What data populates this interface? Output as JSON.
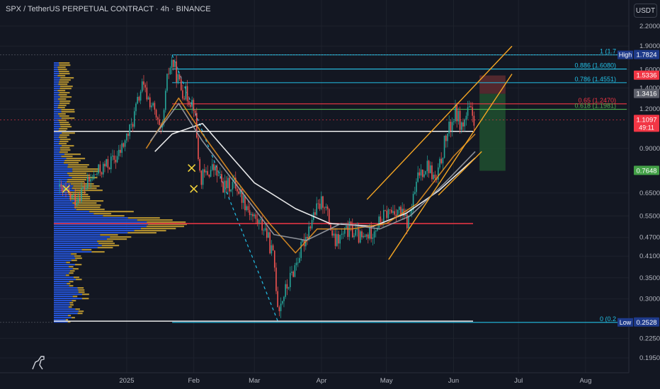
{
  "header": {
    "title": "SPX / TetherUS PERPETUAL CONTRACT · 4h · BINANCE",
    "currency_button": "USDT"
  },
  "colors": {
    "background": "#131722",
    "grid": "#1e222d",
    "candle_up": "#26a69a",
    "candle_down": "#ef5350",
    "volume_profile_up": "#2962ff",
    "volume_profile_down": "#c8a132",
    "channel": "#f5a623",
    "fib": "#22c0e6",
    "fib_red": "#f23645",
    "fib_green": "#4caf50",
    "ma_white": "#ffffff",
    "ma_orange": "#e08e22",
    "ma_grey": "#9b9ea6",
    "long_target": "#1f4d2f",
    "short_stop": "#5a2a30"
  },
  "chart_data": {
    "type": "candlestick",
    "symbol": "SPX / TetherUS PERPETUAL CONTRACT",
    "interval": "4h",
    "exchange": "BINANCE",
    "yscale": "log",
    "ylim": [
      0.175,
      2.45
    ],
    "xlim": [
      "2024-11-28",
      "2025-08-20"
    ],
    "y_ticks": [
      "2.2000",
      "1.9000",
      "1.6000",
      "1.4000",
      "1.2000",
      "0.9000",
      "0.6500",
      "0.5500",
      "0.4700",
      "0.4100",
      "0.3500",
      "0.3000",
      "0.2250",
      "0.1950"
    ],
    "x_ticks": [
      {
        "label": "2025",
        "date": "2025-01-01"
      },
      {
        "label": "Feb",
        "date": "2025-02-01"
      },
      {
        "label": "Mar",
        "date": "2025-03-01"
      },
      {
        "label": "Apr",
        "date": "2025-04-01"
      },
      {
        "label": "May",
        "date": "2025-05-01"
      },
      {
        "label": "Jun",
        "date": "2025-06-01"
      },
      {
        "label": "Jul",
        "date": "2025-07-01"
      },
      {
        "label": "Aug",
        "date": "2025-08-01"
      }
    ],
    "price_path": [
      [
        "2024-11-28",
        0.68
      ],
      [
        "2024-12-08",
        0.62
      ],
      [
        "2024-12-18",
        0.75
      ],
      [
        "2024-12-28",
        0.85
      ],
      [
        "2025-01-03",
        1.05
      ],
      [
        "2025-01-08",
        1.42
      ],
      [
        "2025-01-13",
        1.22
      ],
      [
        "2025-01-17",
        0.98
      ],
      [
        "2025-01-20",
        1.55
      ],
      [
        "2025-01-22",
        1.71
      ],
      [
        "2025-01-26",
        1.4
      ],
      [
        "2025-02-01",
        1.25
      ],
      [
        "2025-02-04",
        0.72
      ],
      [
        "2025-02-10",
        0.78
      ],
      [
        "2025-02-15",
        0.68
      ],
      [
        "2025-02-20",
        0.7
      ],
      [
        "2025-02-28",
        0.55
      ],
      [
        "2025-03-06",
        0.5
      ],
      [
        "2025-03-10",
        0.4
      ],
      [
        "2025-03-12",
        0.28
      ],
      [
        "2025-03-17",
        0.34
      ],
      [
        "2025-03-22",
        0.42
      ],
      [
        "2025-03-28",
        0.55
      ],
      [
        "2025-04-02",
        0.62
      ],
      [
        "2025-04-07",
        0.45
      ],
      [
        "2025-04-14",
        0.5
      ],
      [
        "2025-04-20",
        0.46
      ],
      [
        "2025-04-25",
        0.5
      ],
      [
        "2025-05-01",
        0.56
      ],
      [
        "2025-05-06",
        0.58
      ],
      [
        "2025-05-11",
        0.52
      ],
      [
        "2025-05-16",
        0.75
      ],
      [
        "2025-05-20",
        0.8
      ],
      [
        "2025-05-24",
        0.7
      ],
      [
        "2025-05-28",
        0.95
      ],
      [
        "2025-06-02",
        1.18
      ],
      [
        "2025-06-05",
        1.05
      ],
      [
        "2025-06-08",
        1.19
      ],
      [
        "2025-06-11",
        1.11
      ]
    ],
    "moving_averages": [
      {
        "color": "#ffffff",
        "points": [
          [
            "2025-01-14",
            0.88
          ],
          [
            "2025-01-22",
            1.0
          ],
          [
            "2025-02-05",
            1.08
          ],
          [
            "2025-02-15",
            0.9
          ],
          [
            "2025-03-01",
            0.7
          ],
          [
            "2025-03-20",
            0.58
          ],
          [
            "2025-04-05",
            0.52
          ],
          [
            "2025-04-25",
            0.51
          ],
          [
            "2025-05-10",
            0.56
          ],
          [
            "2025-05-25",
            0.66
          ],
          [
            "2025-06-11",
            0.84
          ]
        ]
      },
      {
        "color": "#e08e22",
        "points": [
          [
            "2025-01-10",
            0.9
          ],
          [
            "2025-01-25",
            1.3
          ],
          [
            "2025-02-05",
            1.0
          ],
          [
            "2025-02-20",
            0.72
          ],
          [
            "2025-03-08",
            0.52
          ],
          [
            "2025-03-20",
            0.42
          ],
          [
            "2025-03-30",
            0.5
          ],
          [
            "2025-04-15",
            0.5
          ],
          [
            "2025-05-01",
            0.52
          ],
          [
            "2025-05-15",
            0.6
          ],
          [
            "2025-06-01",
            0.85
          ],
          [
            "2025-06-11",
            1.0
          ]
        ]
      },
      {
        "color": "#9b9ea6",
        "points": [
          [
            "2025-01-12",
            0.95
          ],
          [
            "2025-01-25",
            1.25
          ],
          [
            "2025-02-05",
            0.95
          ],
          [
            "2025-02-20",
            0.7
          ],
          [
            "2025-03-10",
            0.48
          ],
          [
            "2025-03-25",
            0.46
          ],
          [
            "2025-04-10",
            0.52
          ],
          [
            "2025-04-28",
            0.5
          ],
          [
            "2025-05-12",
            0.55
          ],
          [
            "2025-05-28",
            0.7
          ],
          [
            "2025-06-11",
            0.88
          ]
        ]
      }
    ],
    "fib_levels": [
      {
        "ratio": "1",
        "label": "1 (1.7",
        "price": 1.7824,
        "color": "#22c0e6"
      },
      {
        "ratio": "0.886",
        "label": "0.886 (1.6080)",
        "price": 1.608,
        "color": "#22c0e6"
      },
      {
        "ratio": "0.786",
        "label": "0.786 (1.4551)",
        "price": 1.4551,
        "color": "#22c0e6"
      },
      {
        "ratio": "0.65",
        "label": "0.65 (1.2470)",
        "price": 1.247,
        "color": "#f23645"
      },
      {
        "ratio": "0.618",
        "label": "0.618 (1.1981)",
        "price": 1.1981,
        "color": "#4caf50"
      },
      {
        "ratio": "0",
        "label": "0 (0.2",
        "price": 0.2528,
        "color": "#22c0e6"
      }
    ],
    "horizontal_lines": [
      {
        "price": 1.02,
        "color": "#ffffff"
      },
      {
        "price": 0.52,
        "color": "#f23645"
      },
      {
        "price": 0.255,
        "color": "#ffffff"
      }
    ],
    "channel_lines": [
      [
        [
          "2025-04-22",
          0.62
        ],
        [
          "2025-06-28",
          1.9
        ]
      ],
      [
        [
          "2025-05-02",
          0.4
        ],
        [
          "2025-06-28",
          1.55
        ]
      ],
      [
        [
          "2025-05-25",
          0.64
        ],
        [
          "2025-06-14",
          0.88
        ]
      ]
    ],
    "fib_swing": [
      [
        "2025-01-22",
        1.78
      ],
      [
        "2025-03-12",
        0.253
      ]
    ],
    "position_box": {
      "from": "2025-06-13",
      "to": "2025-06-25",
      "stop_price": 1.5336,
      "entry_price": 1.3416,
      "target_price": 0.7648
    },
    "price_labels": [
      {
        "text": "High",
        "price": 1.7824,
        "color": "#22c0e6"
      },
      {
        "text": "1.7824",
        "price": 1.7824,
        "color": "#1e3a8a"
      },
      {
        "text": "1.5336",
        "price": 1.5336,
        "color": "#f23645"
      },
      {
        "text": "1.3416",
        "price": 1.3416,
        "color": "#5d606b"
      },
      {
        "text": "1.1097",
        "sub": "49:11",
        "price": 1.1097,
        "color": "#f23645"
      },
      {
        "text": "0.7648",
        "price": 0.7648,
        "color": "#43a047"
      },
      {
        "text": "Low",
        "price": 0.2528,
        "color": "#22c0e6"
      },
      {
        "text": "0.2528",
        "price": 0.2528,
        "color": "#1e3a8a"
      }
    ],
    "markers": [
      {
        "date": "2025-01-31",
        "price": 0.78
      },
      {
        "date": "2025-02-01",
        "price": 0.67
      },
      {
        "date": "2024-12-04",
        "price": 0.67
      }
    ]
  }
}
